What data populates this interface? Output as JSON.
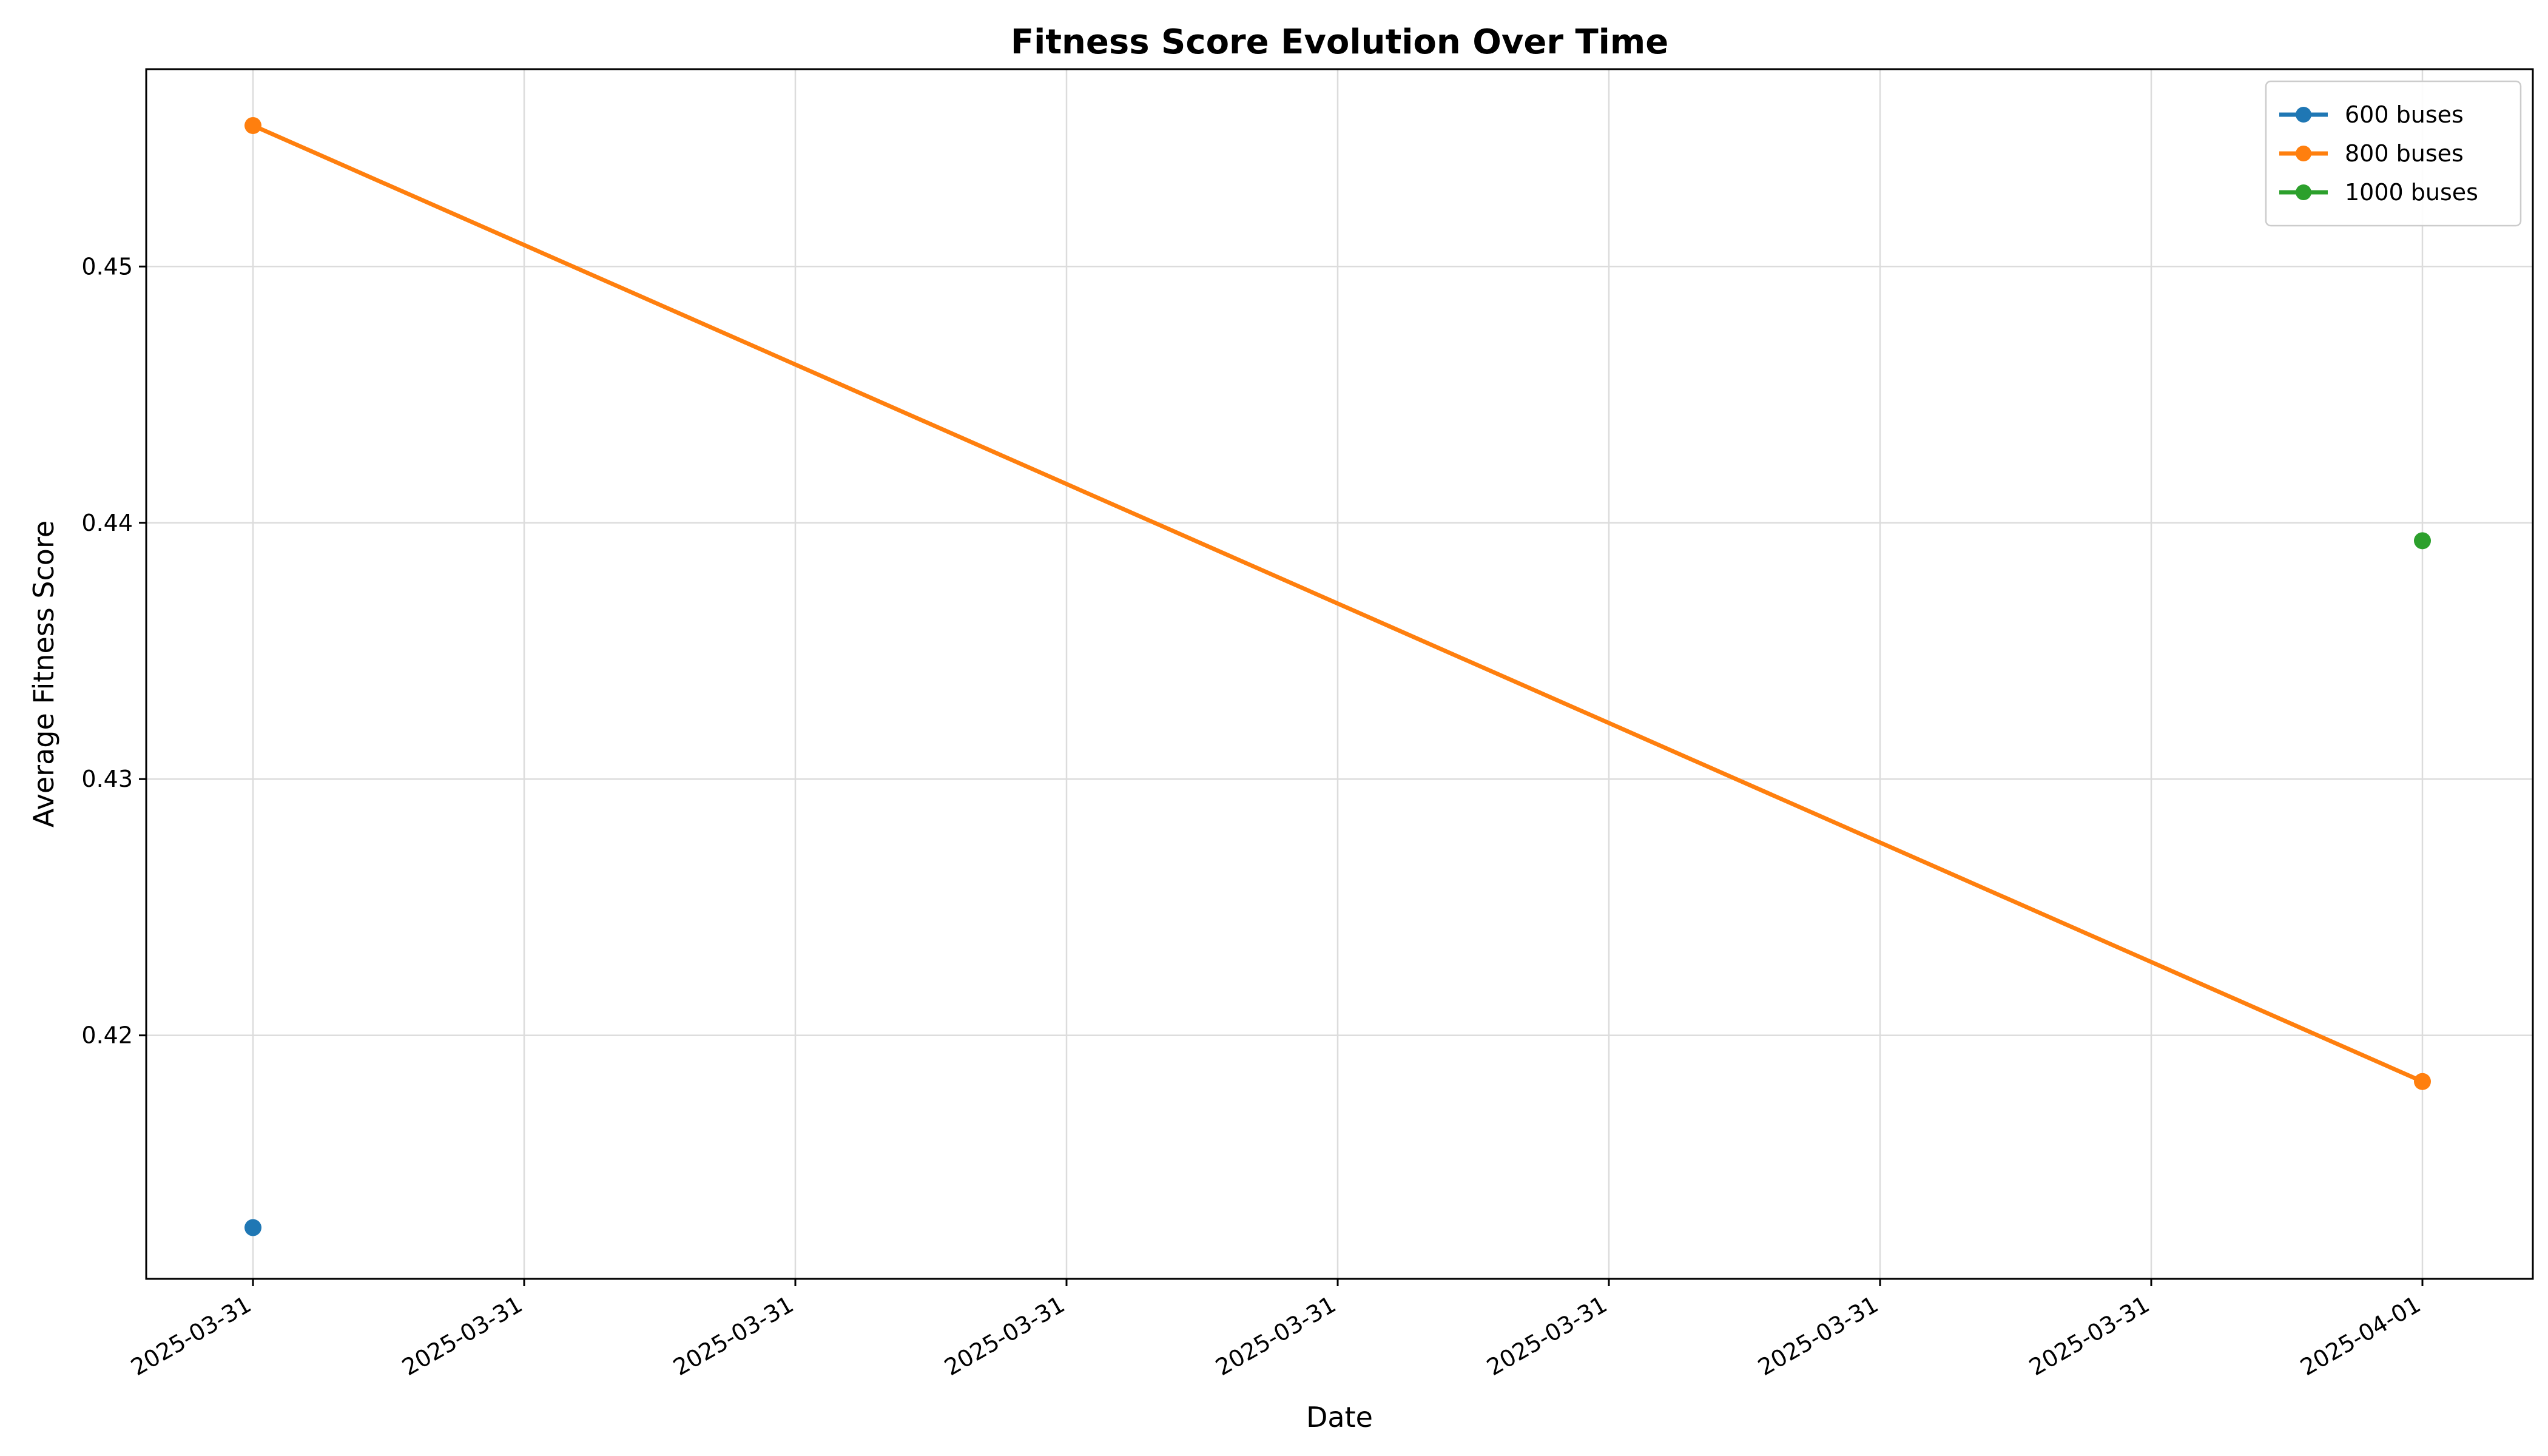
{
  "chart_data": {
    "type": "line",
    "title": "Fitness Score Evolution Over Time",
    "xlabel": "Date",
    "ylabel": "Average Fitness Score",
    "x_range": [
      "2025-03-31 00:00",
      "2025-04-01 00:00"
    ],
    "x_tick_labels": [
      "2025-03-31",
      "2025-03-31",
      "2025-03-31",
      "2025-03-31",
      "2025-03-31",
      "2025-03-31",
      "2025-03-31",
      "2025-03-31",
      "2025-04-01"
    ],
    "y_ticks": [
      0.42,
      0.43,
      0.44,
      0.45
    ],
    "y_tick_labels": [
      "0.42",
      "0.43",
      "0.44",
      "0.45"
    ],
    "ylim": [
      0.4105,
      0.4577
    ],
    "grid": true,
    "legend_position": "top-right",
    "series": [
      {
        "name": "600 buses",
        "color": "#1f77b4",
        "points": [
          {
            "x": "2025-03-31 00:00",
            "y": 0.4125
          }
        ]
      },
      {
        "name": "800 buses",
        "color": "#ff7f0e",
        "points": [
          {
            "x": "2025-03-31 00:00",
            "y": 0.4555
          },
          {
            "x": "2025-04-01 00:00",
            "y": 0.4182
          }
        ]
      },
      {
        "name": "1000 buses",
        "color": "#2ca02c",
        "points": [
          {
            "x": "2025-04-01 00:00",
            "y": 0.4393
          }
        ]
      }
    ]
  }
}
